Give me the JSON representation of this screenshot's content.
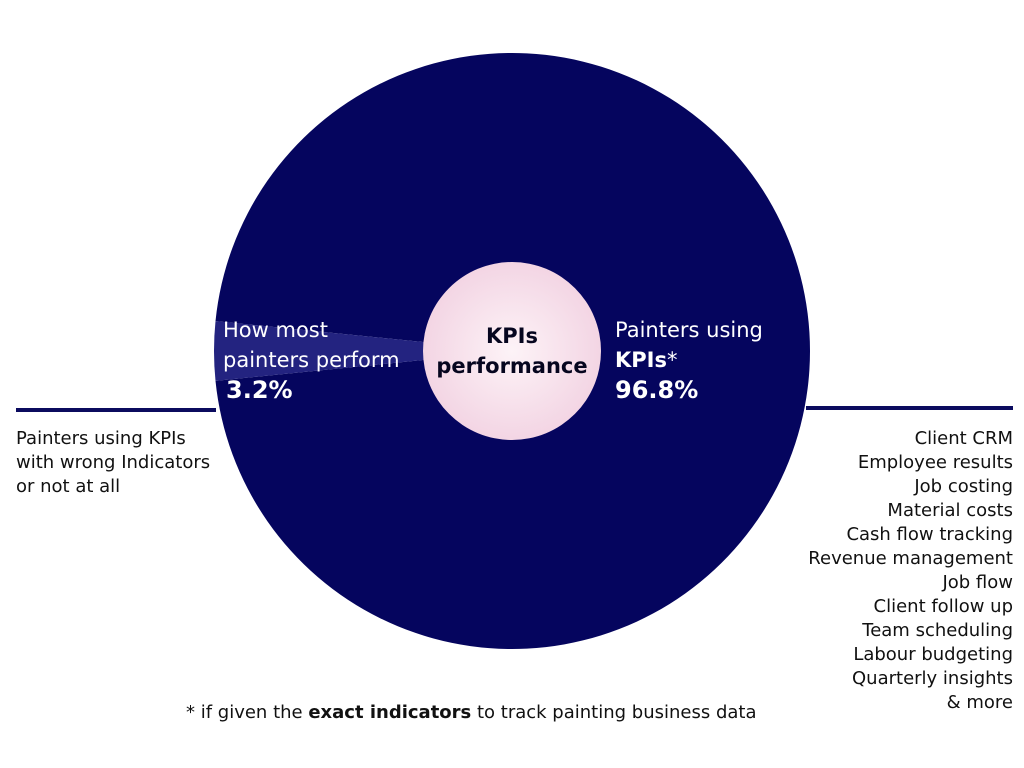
{
  "chart_data": {
    "type": "pie",
    "title": "KPIs performance",
    "subtitle": "",
    "slices": [
      {
        "label": "Painters using KPIs*",
        "value": 96.8,
        "value_label": "96.8%",
        "color": "#05055e"
      },
      {
        "label": "How most painters perform",
        "value": 3.2,
        "value_label": "3.2%",
        "color": "#232380"
      }
    ],
    "center_color": "#f6dce8"
  },
  "labels": {
    "center_line1": "KPIs",
    "center_line2": "performance",
    "big_slice_line1": "Painters using",
    "big_slice_kpis": "KPIs",
    "big_slice_star": "*",
    "big_slice_pct": "96.8%",
    "small_slice_line1": "How most",
    "small_slice_line2": "painters perform",
    "small_slice_pct": "3.2%"
  },
  "left_note": [
    "Painters using KPIs",
    "with wrong Indicators",
    "or not at all"
  ],
  "right_list": [
    "Client CRM",
    "Employee results",
    "Job costing",
    "Material costs",
    "Cash flow tracking",
    "Revenue management",
    "Job flow",
    "Client follow up",
    "Team scheduling",
    "Labour budgeting",
    "Quarterly insights",
    "& more"
  ],
  "footnote": {
    "prefix": "* if given the ",
    "bold": "exact indicators",
    "suffix": " to track painting business data"
  }
}
